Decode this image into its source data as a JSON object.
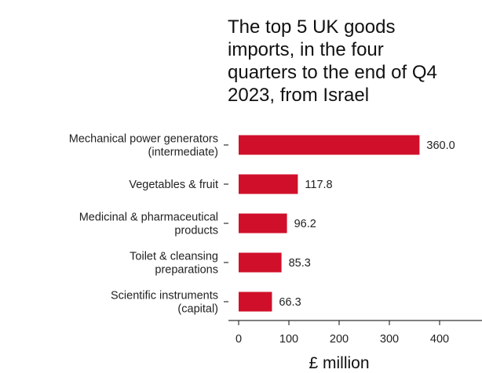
{
  "chart_data": {
    "type": "bar",
    "orientation": "horizontal",
    "title_lines": [
      "The top 5 UK goods",
      "imports, in the four",
      "quarters to the end of Q4",
      "2023, from Israel"
    ],
    "categories": [
      [
        "Mechanical power generators",
        "(intermediate)"
      ],
      [
        "Vegetables & fruit"
      ],
      [
        "Medicinal & pharmaceutical",
        "products"
      ],
      [
        "Toilet & cleansing",
        "preparations"
      ],
      [
        "Scientific instruments",
        "(capital)"
      ]
    ],
    "values": [
      360.0,
      117.8,
      96.2,
      85.3,
      66.3
    ],
    "value_labels": [
      "360.0",
      "117.8",
      "96.2",
      "85.3",
      "66.3"
    ],
    "xlabel": "£ million",
    "ylabel": "",
    "xlim": [
      0,
      480
    ],
    "xticks": [
      0,
      100,
      200,
      300,
      400
    ],
    "grid": false,
    "bar_color": "#d0102a"
  }
}
